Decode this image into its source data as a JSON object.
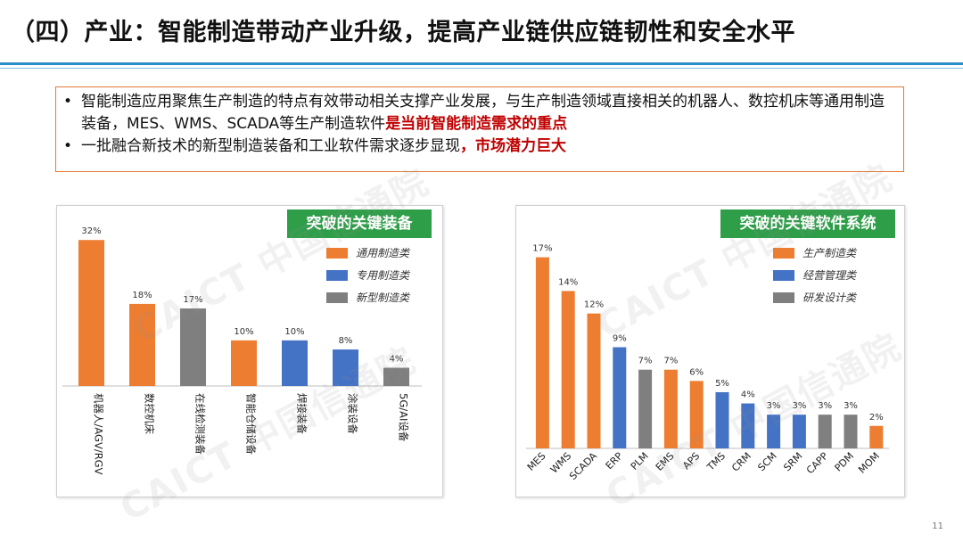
{
  "title": "（四）产业：智能制造带动产业升级，提高产业链供应链韧性和安全水平",
  "bullets": [
    {
      "text": "智能制造应用聚焦生产制造的特点有效带动相关支撑产业发展，与生产制造领域直接相关的机器人、数控机床等通用制造装备，MES、WMS、SCADA等生产制造软件",
      "highlight": "是当前智能制造需求的重点"
    },
    {
      "text": "一批融合新技术的新型制造装备和工业软件需求逐步显现",
      "highlight": "，市场潜力巨大"
    }
  ],
  "watermark": "CAICT 中国信通院",
  "page_number": "11",
  "colors": {
    "orange": "#ED7D31",
    "blue": "#4472C4",
    "gray": "#7F7F7F",
    "green": "#2E9E49",
    "accent_red": "#C00000"
  },
  "chart_data": [
    {
      "type": "bar",
      "title": "突破的关键装备",
      "legend": [
        {
          "name": "通用制造类",
          "color": "#ED7D31"
        },
        {
          "name": "专用制造类",
          "color": "#4472C4"
        },
        {
          "name": "新型制造类",
          "color": "#7F7F7F"
        }
      ],
      "categories": [
        "机器人/AGV/RGV",
        "数控机床",
        "在线检测装备",
        "智能仓储设备",
        "焊接装备",
        "涂装设备",
        "5G/AI设备"
      ],
      "values": [
        32,
        18,
        17,
        10,
        10,
        8,
        4
      ],
      "labels": [
        "32%",
        "18%",
        "17%",
        "10%",
        "10%",
        "8%",
        "4%"
      ],
      "groups": [
        "通用制造类",
        "通用制造类",
        "新型制造类",
        "通用制造类",
        "专用制造类",
        "专用制造类",
        "新型制造类"
      ],
      "ylim": [
        0,
        34
      ],
      "legend_position": "top-right"
    },
    {
      "type": "bar",
      "title": "突破的关键软件系统",
      "legend": [
        {
          "name": "生产制造类",
          "color": "#ED7D31"
        },
        {
          "name": "经营管理类",
          "color": "#4472C4"
        },
        {
          "name": "研发设计类",
          "color": "#7F7F7F"
        }
      ],
      "categories": [
        "MES",
        "WMS",
        "SCADA",
        "ERP",
        "PLM",
        "EMS",
        "APS",
        "TMS",
        "CRM",
        "SCM",
        "SRM",
        "CAPP",
        "PDM",
        "MOM"
      ],
      "values": [
        17,
        14,
        12,
        9,
        7,
        7,
        6,
        5,
        4,
        3,
        3,
        3,
        3,
        2
      ],
      "labels": [
        "17%",
        "14%",
        "12%",
        "9%",
        "7%",
        "7%",
        "6%",
        "5%",
        "4%",
        "3%",
        "3%",
        "3%",
        "3%",
        "2%"
      ],
      "groups": [
        "生产制造类",
        "生产制造类",
        "生产制造类",
        "经营管理类",
        "研发设计类",
        "生产制造类",
        "生产制造类",
        "经营管理类",
        "经营管理类",
        "经营管理类",
        "经营管理类",
        "研发设计类",
        "研发设计类",
        "生产制造类"
      ],
      "ylim": [
        0,
        18
      ],
      "legend_position": "top-right"
    }
  ]
}
